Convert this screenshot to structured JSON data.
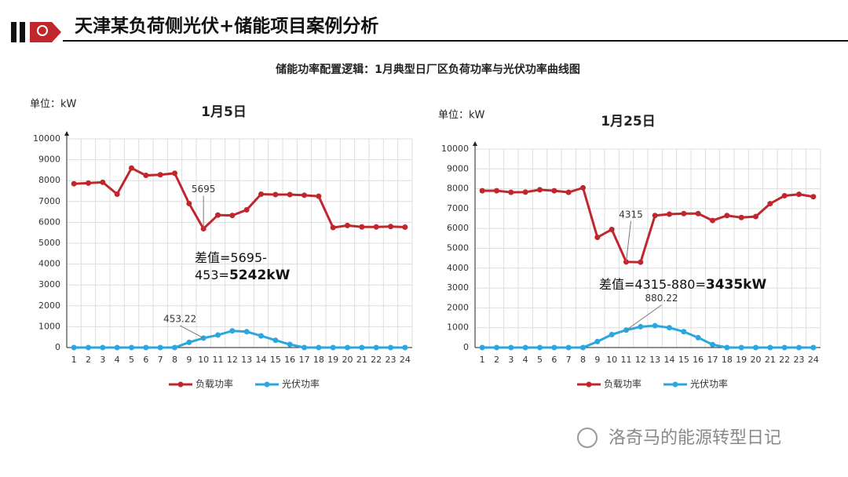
{
  "header": {
    "title": "天津某负荷侧光伏+储能项目案例分析"
  },
  "subtitle": "储能功率配置逻辑：1月典型日厂区负荷功率与光伏功率曲线图",
  "watermark": "洛奇马的能源转型日记",
  "chart_data": [
    {
      "type": "line",
      "title": "1月5日",
      "unit_label": "单位：kW",
      "categories": [
        "1",
        "2",
        "3",
        "4",
        "5",
        "6",
        "7",
        "8",
        "9",
        "10",
        "11",
        "12",
        "13",
        "14",
        "15",
        "16",
        "17",
        "18",
        "19",
        "20",
        "21",
        "22",
        "23",
        "24"
      ],
      "series": [
        {
          "name": "负载功率",
          "color": "#c0272d",
          "values": [
            7850,
            7880,
            7920,
            7350,
            8600,
            8250,
            8280,
            8350,
            6900,
            5695,
            6350,
            6330,
            6600,
            7350,
            7330,
            7330,
            7300,
            7250,
            5750,
            5850,
            5780,
            5780,
            5800,
            5770
          ],
          "value_labels": [
            null,
            null,
            null,
            null,
            null,
            null,
            null,
            null,
            null,
            "5695",
            null,
            null,
            null,
            null,
            null,
            null,
            null,
            null,
            null,
            null,
            null,
            null,
            null,
            null
          ]
        },
        {
          "name": "光伏功率",
          "color": "#2aa7e0",
          "values": [
            0,
            0,
            0,
            0,
            0,
            0,
            0,
            0,
            250,
            453.22,
            600,
            800,
            760,
            560,
            350,
            150,
            0,
            0,
            0,
            0,
            0,
            0,
            0,
            0
          ],
          "value_labels": [
            null,
            null,
            null,
            null,
            null,
            null,
            null,
            null,
            null,
            "453.22",
            null,
            null,
            null,
            null,
            null,
            null,
            null,
            null,
            null,
            null,
            null,
            null,
            null,
            null
          ]
        }
      ],
      "annotation": {
        "text": "差值=5695-453=",
        "emphasis": "5242kW"
      },
      "ylim": [
        0,
        10000
      ],
      "yticks": [
        0,
        1000,
        2000,
        3000,
        4000,
        5000,
        6000,
        7000,
        8000,
        9000,
        10000
      ],
      "grid": true,
      "legend": "bottom"
    },
    {
      "type": "line",
      "title": "1月25日",
      "unit_label": "单位：kW",
      "categories": [
        "1",
        "2",
        "3",
        "4",
        "5",
        "6",
        "7",
        "8",
        "9",
        "10",
        "11",
        "12",
        "13",
        "14",
        "15",
        "16",
        "17",
        "18",
        "19",
        "20",
        "21",
        "22",
        "23",
        "24"
      ],
      "series": [
        {
          "name": "负载功率",
          "color": "#c0272d",
          "values": [
            7900,
            7900,
            7820,
            7830,
            7950,
            7900,
            7820,
            8050,
            5550,
            5950,
            4315,
            4300,
            6650,
            6720,
            6750,
            6750,
            6400,
            6650,
            6550,
            6600,
            7250,
            7650,
            7720,
            7600
          ],
          "value_labels": [
            null,
            null,
            null,
            null,
            null,
            null,
            null,
            null,
            null,
            null,
            "4315",
            null,
            null,
            null,
            null,
            null,
            null,
            null,
            null,
            null,
            null,
            null,
            null,
            null
          ]
        },
        {
          "name": "光伏功率",
          "color": "#2aa7e0",
          "values": [
            0,
            0,
            0,
            0,
            0,
            0,
            0,
            0,
            300,
            650,
            880.22,
            1050,
            1100,
            1000,
            800,
            500,
            150,
            0,
            0,
            0,
            0,
            0,
            0,
            0
          ],
          "value_labels": [
            null,
            null,
            null,
            null,
            null,
            null,
            null,
            null,
            null,
            null,
            "880.22",
            null,
            null,
            null,
            null,
            null,
            null,
            null,
            null,
            null,
            null,
            null,
            null,
            null
          ]
        }
      ],
      "annotation": {
        "text": "差值=4315-880=",
        "emphasis": "3435kW"
      },
      "ylim": [
        0,
        10000
      ],
      "yticks": [
        0,
        1000,
        2000,
        3000,
        4000,
        5000,
        6000,
        7000,
        8000,
        9000,
        10000
      ],
      "grid": true,
      "legend": "bottom"
    }
  ]
}
